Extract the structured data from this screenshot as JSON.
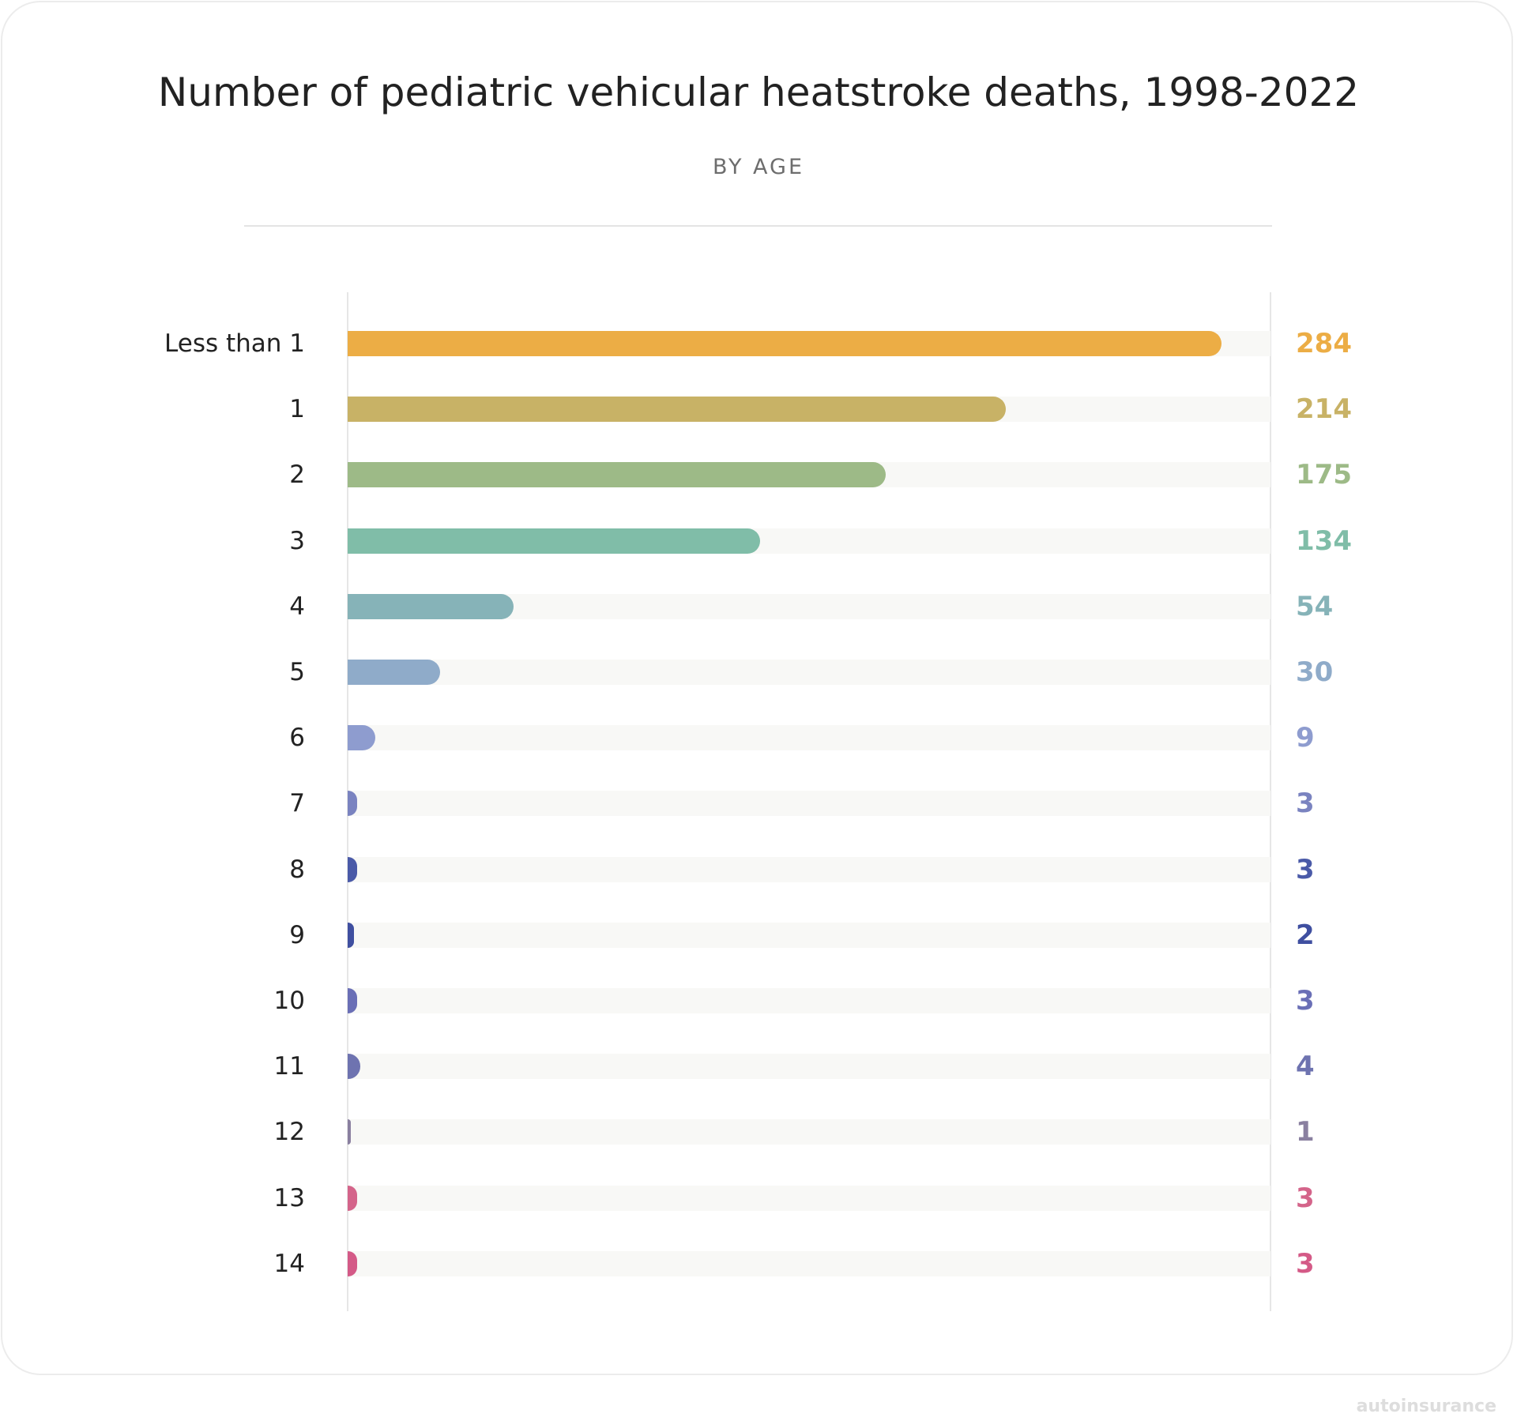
{
  "chart_data": {
    "type": "bar",
    "orientation": "horizontal",
    "title": "Number of pediatric vehicular heatstroke deaths, 1998-2022",
    "subtitle": "BY AGE",
    "categories": [
      "Less than 1",
      "1",
      "2",
      "3",
      "4",
      "5",
      "6",
      "7",
      "8",
      "9",
      "10",
      "11",
      "12",
      "13",
      "14"
    ],
    "values": [
      284,
      214,
      175,
      134,
      54,
      30,
      9,
      3,
      3,
      2,
      3,
      4,
      1,
      3,
      3
    ],
    "colors": [
      "#ecad45",
      "#c8b266",
      "#9dba87",
      "#80bda8",
      "#86b3b8",
      "#8fabc9",
      "#8e9ccf",
      "#7a83c0",
      "#4a5aa8",
      "#3f4fa0",
      "#6a6fb6",
      "#6e73b0",
      "#8a80a0",
      "#d4648a",
      "#d45a87"
    ],
    "xlim": [
      0,
      300
    ],
    "grid": false,
    "legend": "none"
  },
  "branding": {
    "watermark": "autoinsurance.com"
  }
}
